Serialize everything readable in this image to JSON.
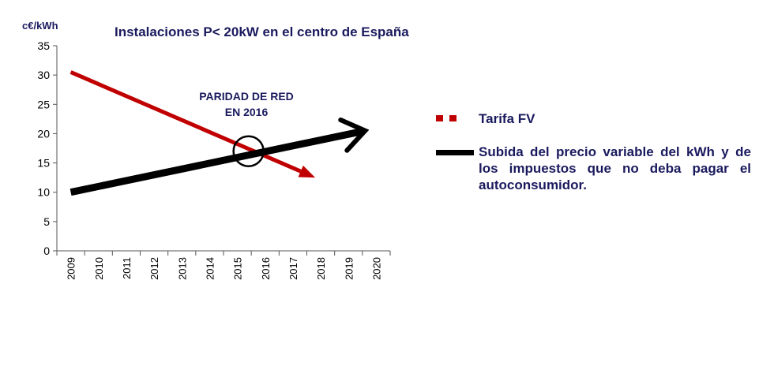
{
  "chart_data": {
    "type": "line",
    "title": "Instalaciones P< 20kW en el centro de España",
    "ylabel": "c€/kWh",
    "xlabel": "",
    "ylim": [
      0,
      35
    ],
    "yticks": [
      0,
      5,
      10,
      15,
      20,
      25,
      30,
      35
    ],
    "categories": [
      "2009",
      "2010",
      "2011",
      "2012",
      "2013",
      "2014",
      "2015",
      "2016",
      "2017",
      "2018",
      "2019",
      "2020"
    ],
    "series": [
      {
        "name": "Tarifa FV",
        "color": "#c00000",
        "style": "arrow",
        "x": [
          2009,
          2017.8
        ],
        "y": [
          30.5,
          12.5
        ]
      },
      {
        "name": "Subida del precio variable del kWh y de los impuestos que no deba pagar el autoconsumidor.",
        "color": "#000000",
        "style": "arrow",
        "x": [
          2009,
          2019.6
        ],
        "y": [
          10,
          20.5
        ]
      }
    ],
    "annotations": [
      {
        "text_lines": [
          "PARIDAD DE RED",
          "EN 2016"
        ],
        "x": 2015.4,
        "y": 17
      }
    ],
    "grid": false,
    "legend_position": "right"
  }
}
